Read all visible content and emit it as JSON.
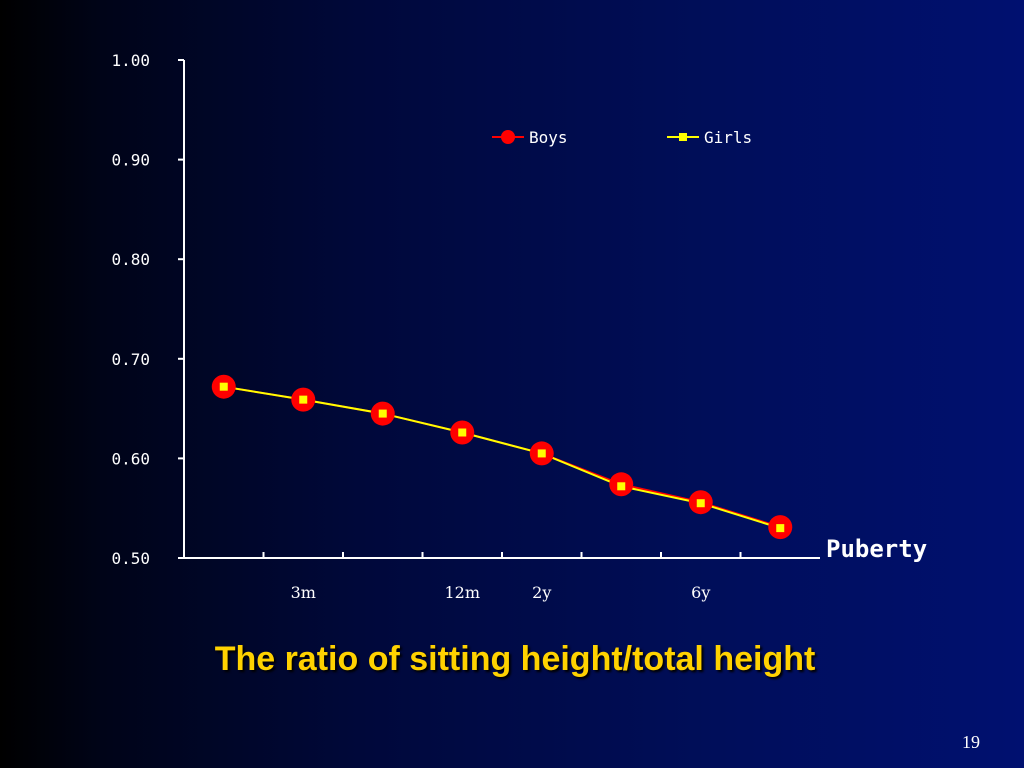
{
  "slide": {
    "title": "The ratio of sitting height/total height",
    "page_number": "19"
  },
  "chart_data": {
    "type": "line",
    "title": "",
    "xlabel": "",
    "ylabel": "",
    "ylim": [
      0.5,
      1.0
    ],
    "y_ticks": [
      "0.50",
      "0.60",
      "0.70",
      "0.80",
      "0.90",
      "1.00"
    ],
    "categories": [
      "",
      "3m",
      "",
      "12m",
      "2y",
      "",
      "6y",
      ""
    ],
    "x_end_label": "Puberty",
    "legend_position": "top-right",
    "grid": false,
    "series": [
      {
        "name": "Boys",
        "color": "#ff0000",
        "marker": "circle",
        "values": [
          0.672,
          0.659,
          0.645,
          0.626,
          0.605,
          0.574,
          0.556,
          0.531
        ]
      },
      {
        "name": "Girls",
        "color": "#ffff00",
        "marker": "square",
        "values": [
          0.672,
          0.659,
          0.645,
          0.626,
          0.605,
          0.572,
          0.555,
          0.53
        ]
      }
    ],
    "colors": {
      "axis": "#ffffff",
      "background": "#000e5a"
    }
  }
}
